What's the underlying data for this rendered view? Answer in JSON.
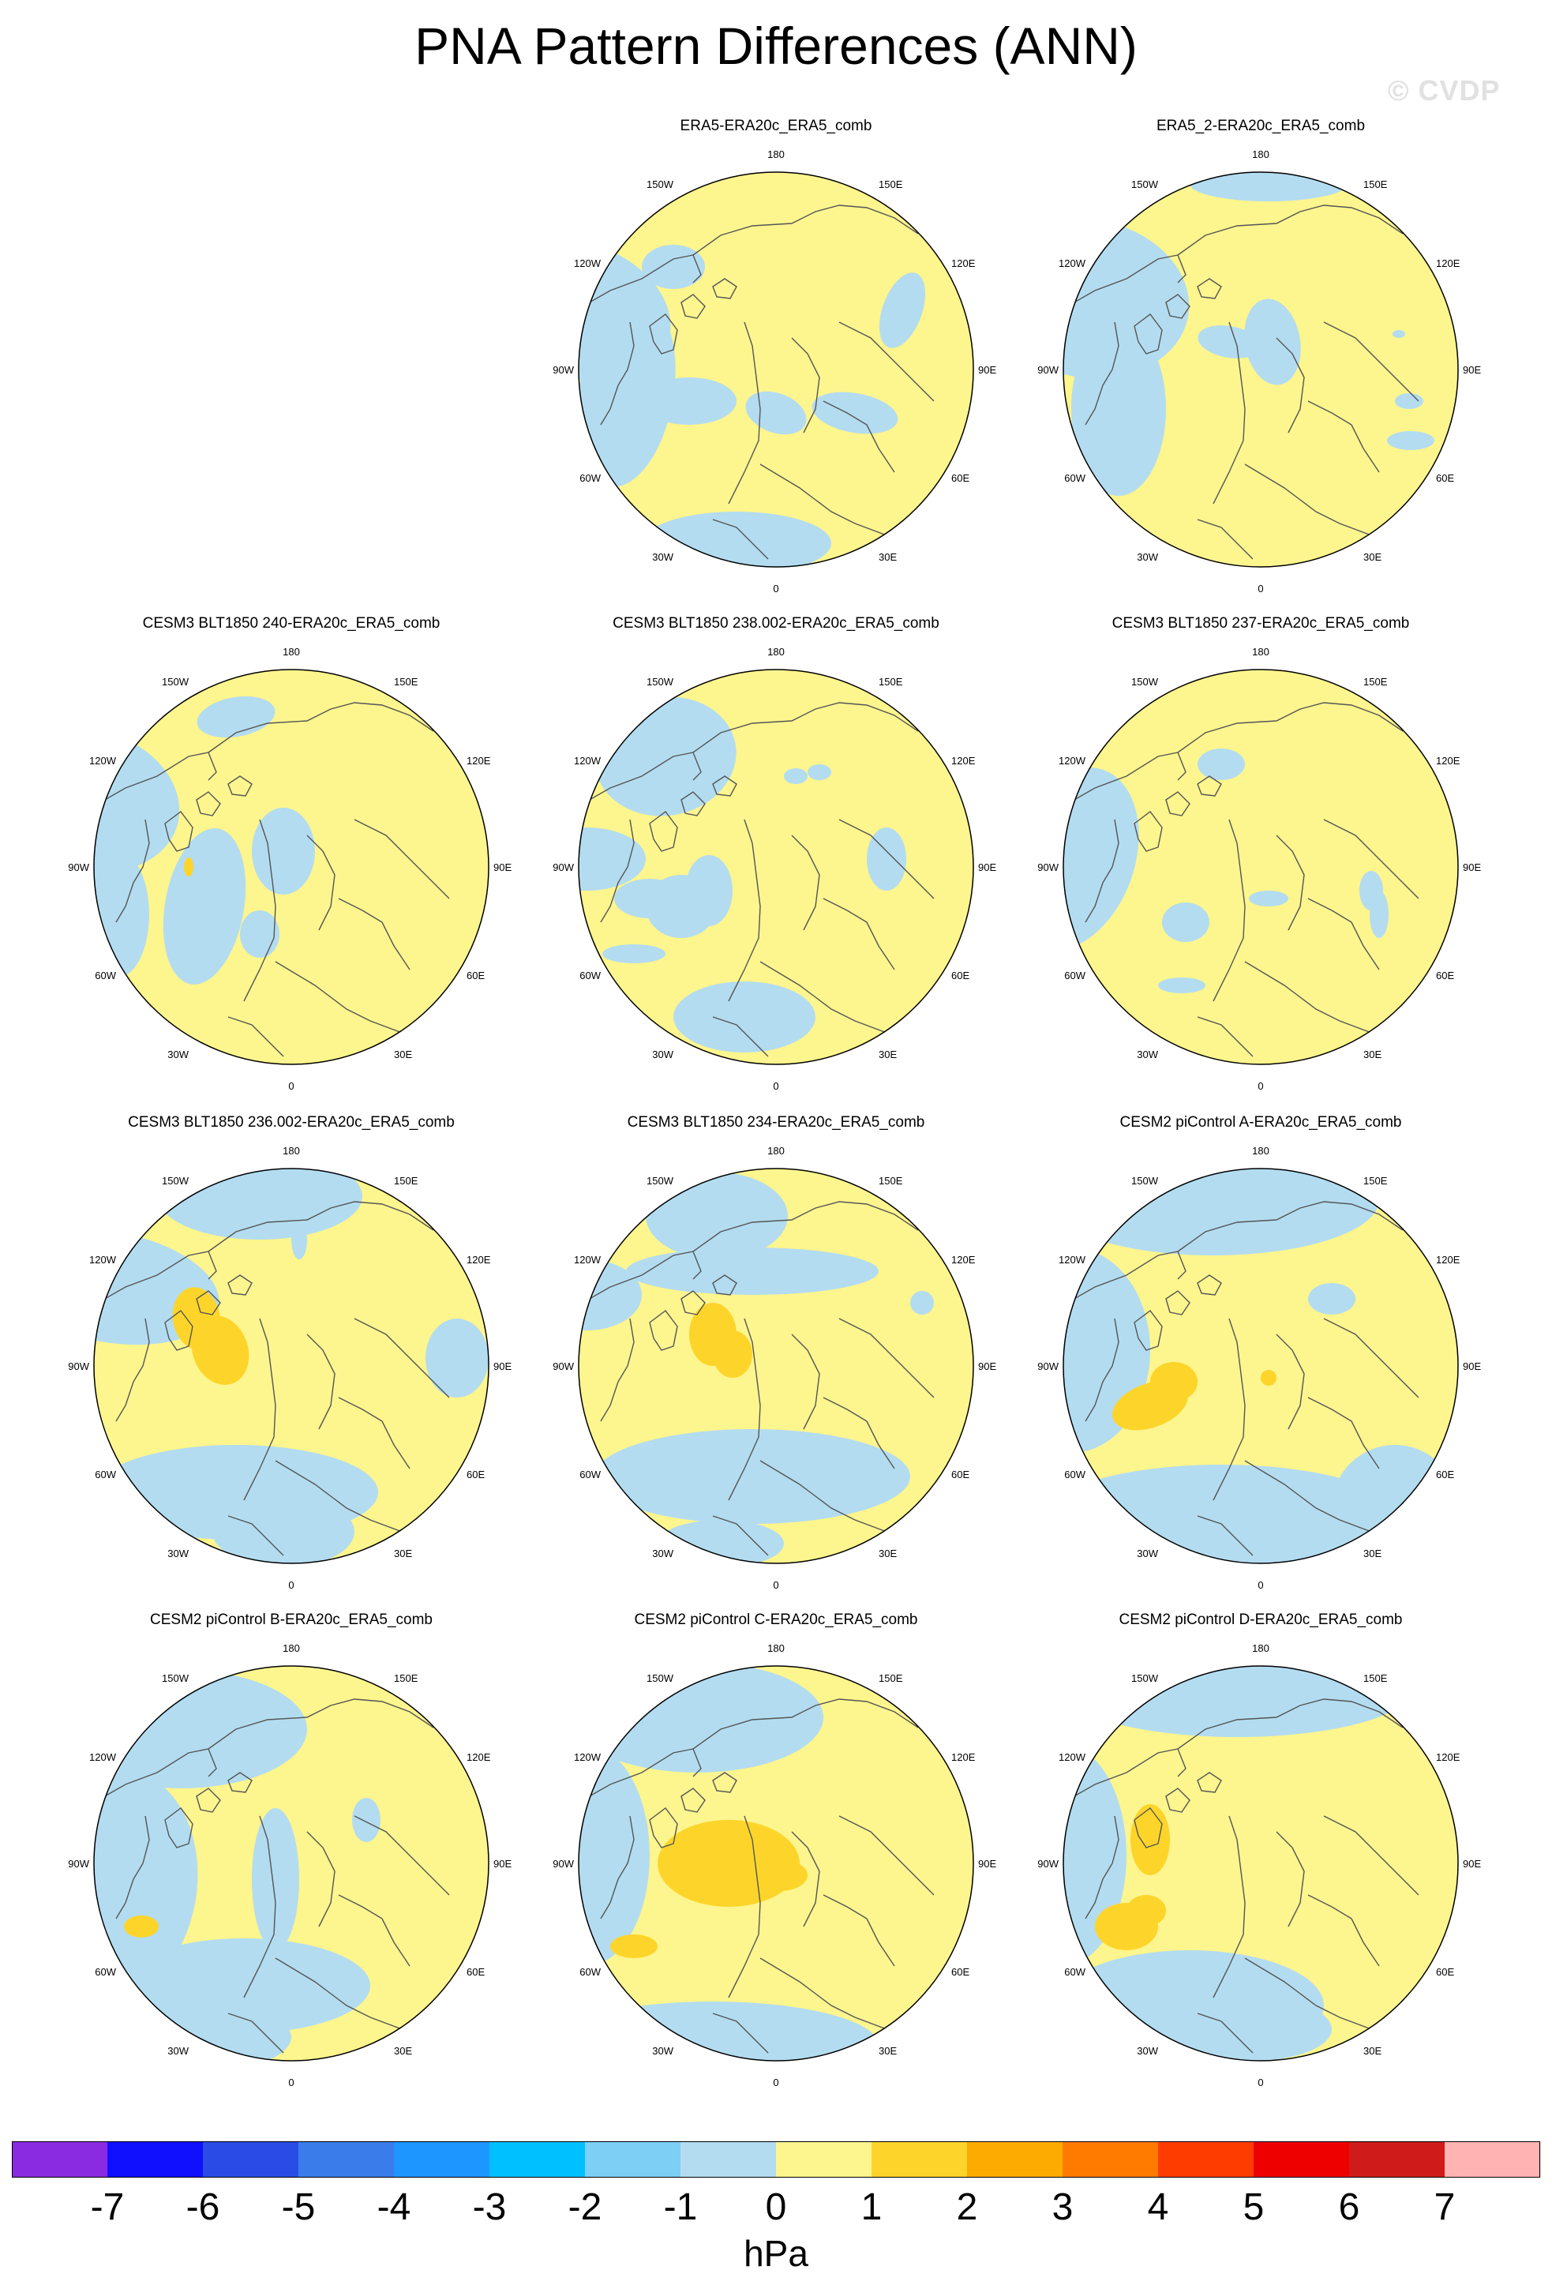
{
  "title": "PNA Pattern Differences (ANN)",
  "watermark": "© CVDP",
  "colors": {
    "yellow": "#fdf58e",
    "blue": "#b3dcf0",
    "gold": "#fdd52a",
    "coast": "#555555"
  },
  "lon_labels": {
    "top": "180",
    "bottom": "0",
    "left": "90W",
    "right": "90E",
    "upper_left": "150W",
    "upper_right": "150E",
    "mid_upper_left": "120W",
    "mid_upper_right": "120E",
    "mid_lower_left": "60W",
    "mid_lower_right": "60E",
    "lower_left": "30W",
    "lower_right": "30E"
  },
  "panels": [
    {
      "title": "ERA5-ERA20c_ERA5_comb"
    },
    {
      "title": "ERA5_2-ERA20c_ERA5_comb"
    },
    {
      "title": "CESM3 BLT1850 240-ERA20c_ERA5_comb"
    },
    {
      "title": "CESM3 BLT1850 238.002-ERA20c_ERA5_comb"
    },
    {
      "title": "CESM3 BLT1850 237-ERA20c_ERA5_comb"
    },
    {
      "title": "CESM3 BLT1850 236.002-ERA20c_ERA5_comb"
    },
    {
      "title": "CESM3 BLT1850 234-ERA20c_ERA5_comb"
    },
    {
      "title": "CESM2 piControl A-ERA20c_ERA5_comb"
    },
    {
      "title": "CESM2 piControl B-ERA20c_ERA5_comb"
    },
    {
      "title": "CESM2 piControl C-ERA20c_ERA5_comb"
    },
    {
      "title": "CESM2 piControl D-ERA20c_ERA5_comb"
    }
  ],
  "colorbar": {
    "unit": "hPa",
    "ticks": [
      "-7",
      "-6",
      "-5",
      "-4",
      "-3",
      "-2",
      "-1",
      "0",
      "1",
      "2",
      "3",
      "4",
      "5",
      "6",
      "7"
    ],
    "colors": [
      "#8a2be2",
      "#1010ff",
      "#2a4be6",
      "#3a7cea",
      "#1e96ff",
      "#00c0ff",
      "#7dcff5",
      "#b3dcf0",
      "#fdf58e",
      "#fdd52a",
      "#fdab00",
      "#ff7b00",
      "#ff3c00",
      "#ee0000",
      "#d01b1b",
      "#ffb3b3"
    ]
  }
}
